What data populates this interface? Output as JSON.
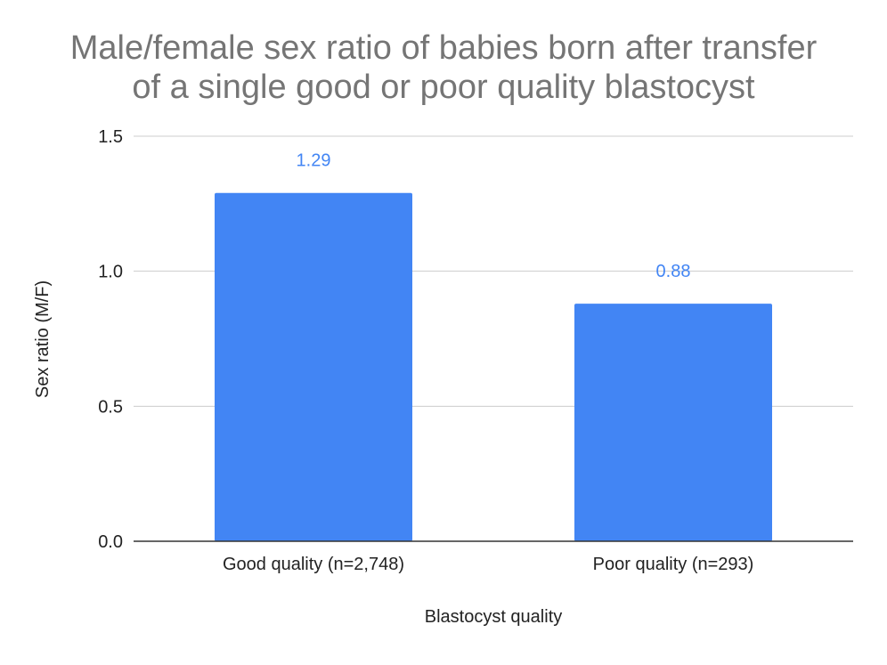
{
  "chart_data": {
    "type": "bar",
    "title_lines": [
      "Male/female sex ratio of babies born after transfer",
      "of a single good or poor quality blastocyst"
    ],
    "xlabel": "Blastocyst quality",
    "ylabel": "Sex ratio (M/F)",
    "categories": [
      "Good quality (n=2,748)",
      "Poor quality (n=293)"
    ],
    "values": [
      1.29,
      0.88
    ],
    "data_labels": [
      "1.29",
      "0.88"
    ],
    "ylim": [
      0,
      1.5
    ],
    "yticks": [
      "0.0",
      "0.5",
      "1.0",
      "1.5"
    ],
    "grid": true,
    "legend": "none",
    "colors": {
      "bar": "#4285f4",
      "data_label": "#4285f4",
      "title": "#757575",
      "gridline": "#cccccc",
      "baseline": "#333333"
    }
  }
}
